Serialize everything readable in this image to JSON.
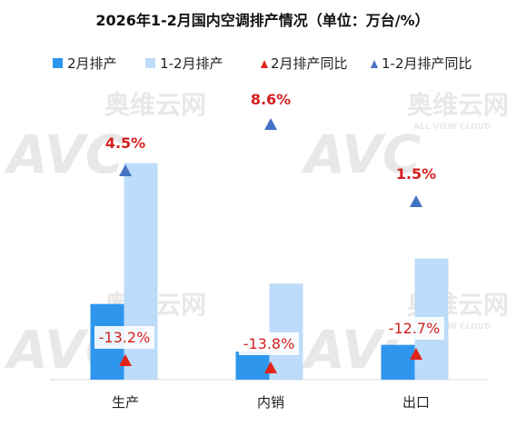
{
  "chart_data": {
    "type": "bar",
    "title": "2026年1-2月国内空调排产情况（单位：万台/%）",
    "categories": [
      "生产",
      "内销",
      "出口"
    ],
    "series": [
      {
        "name": "2月排产",
        "values": [
          1000,
          370,
          460
        ],
        "color": "#2f96ee"
      },
      {
        "name": "1-2月排产",
        "values": [
          2860,
          1270,
          1600
        ],
        "color": "#bcdcf9"
      }
    ],
    "yoy": [
      {
        "name": "2月排产同比",
        "values": [
          "-13.2%",
          "-13.8%",
          "-12.7%"
        ],
        "marker": "triangle",
        "color": "#e3241a"
      },
      {
        "name": "1-2月排产同比",
        "values": [
          "4.5%",
          "8.6%",
          "1.5%"
        ],
        "marker": "triangle",
        "color": "#4472c4"
      }
    ],
    "ylim": [
      0,
      3000
    ],
    "grid": false,
    "legend_position": "top",
    "xlabel": "",
    "ylabel": ""
  },
  "watermark": {
    "brand": "AVC",
    "name": "奥维云网",
    "sub": "ALL VIEW CLOUD"
  }
}
